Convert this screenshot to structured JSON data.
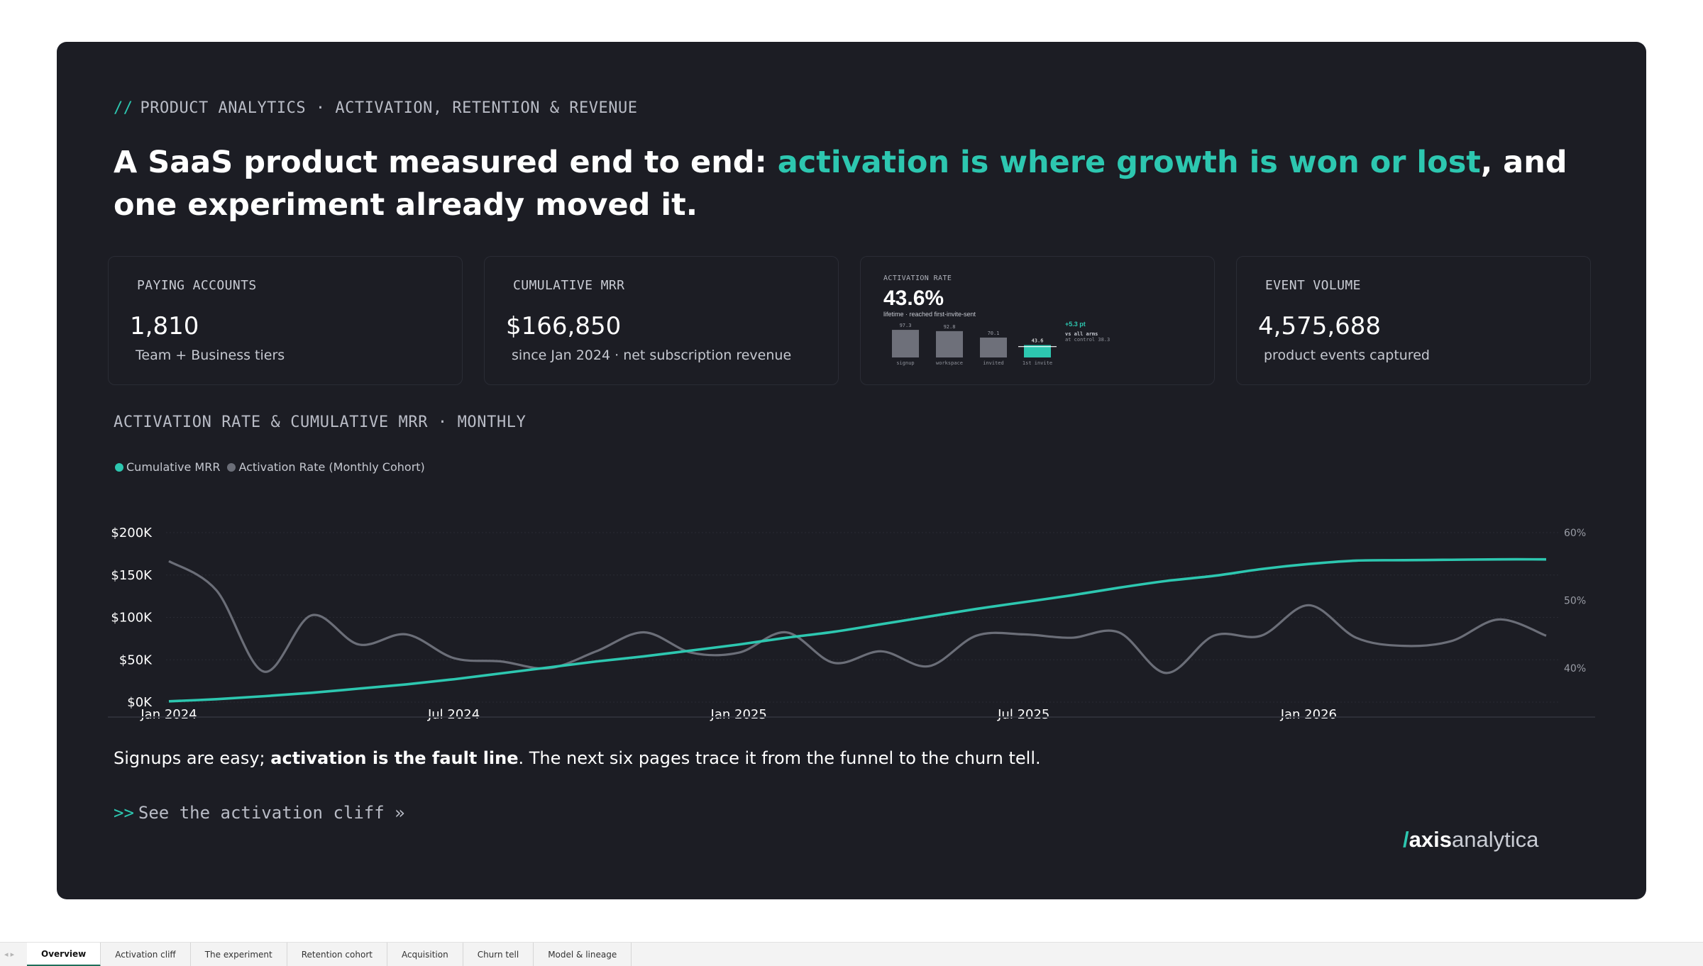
{
  "eyebrow": {
    "prefix": "//",
    "text": "PRODUCT ANALYTICS · ACTIVATION, RETENTION & REVENUE"
  },
  "headline": {
    "part1": "A SaaS product measured end to end: ",
    "accent": "activation is where growth is won or lost",
    "part2": ", and one experiment already moved it."
  },
  "kpis": [
    {
      "label": "PAYING ACCOUNTS",
      "value": "1,810",
      "sub": "Team + Business tiers"
    },
    {
      "label": "CUMULATIVE MRR",
      "value": "$166,850",
      "sub": "since Jan 2024 · net subscription revenue"
    },
    {
      "label": "ACTIVATION RATE",
      "value": "43.6%",
      "sub": "lifetime · reached first-invite-sent"
    },
    {
      "label": "EVENT VOLUME",
      "value": "4,575,688",
      "sub": "product events captured"
    }
  ],
  "mini_funnel": {
    "steps": [
      "signup",
      "workspace",
      "invited",
      "1st invite"
    ],
    "values": [
      "97.3",
      "92.8",
      "70.1",
      "43.6"
    ],
    "levels": [
      97.3,
      92.8,
      70.1,
      43.6
    ],
    "delta": "+5.3 pt",
    "delta_note1": "vs all arms",
    "delta_note2": "at control 38.3"
  },
  "section_title": "ACTIVATION RATE & CUMULATIVE MRR · MONTHLY",
  "legend": [
    {
      "name": "Cumulative MRR",
      "color": "#2dc7b0"
    },
    {
      "name": "Activation Rate (Monthly Cohort)",
      "color": "#6b6e78"
    }
  ],
  "chart_data": {
    "type": "line",
    "x": [
      "2024-01",
      "2024-02",
      "2024-03",
      "2024-04",
      "2024-05",
      "2024-06",
      "2024-07",
      "2024-08",
      "2024-09",
      "2024-10",
      "2024-11",
      "2024-12",
      "2025-01",
      "2025-02",
      "2025-03",
      "2025-04",
      "2025-05",
      "2025-06",
      "2025-07",
      "2025-08",
      "2025-09",
      "2025-10",
      "2025-11",
      "2025-12",
      "2026-01",
      "2026-02",
      "2026-03",
      "2026-04",
      "2026-05",
      "2026-06"
    ],
    "x_ticks": [
      "Jan 2024",
      "Jul 2024",
      "Jan 2025",
      "Jul 2025",
      "Jan 2026"
    ],
    "y_left": {
      "ticks": [
        "$0K",
        "$50K",
        "$100K",
        "$150K",
        "$200K"
      ],
      "range": [
        0,
        200000
      ]
    },
    "y_right": {
      "ticks": [
        "40%",
        "50%",
        "60%"
      ],
      "range": [
        35,
        60
      ]
    },
    "series": [
      {
        "name": "Cumulative MRR",
        "axis": "left",
        "color": "#2dc7b0",
        "values": [
          1000,
          3500,
          7000,
          11000,
          16000,
          21000,
          27000,
          34000,
          41000,
          48000,
          54000,
          61000,
          68000,
          76000,
          83000,
          92000,
          101000,
          110000,
          118000,
          126000,
          135000,
          143000,
          149000,
          157000,
          163000,
          167000,
          167500,
          168000,
          168500,
          168500
        ]
      },
      {
        "name": "Activation Rate (Monthly Cohort)",
        "axis": "right",
        "color": "#6b6e78",
        "values": [
          55.8,
          51.5,
          39.5,
          47.8,
          43.5,
          45.0,
          41.5,
          41.0,
          40.0,
          42.5,
          45.3,
          42.3,
          42.3,
          45.3,
          40.8,
          42.5,
          40.3,
          44.8,
          45.0,
          44.5,
          45.3,
          39.3,
          44.8,
          44.8,
          49.3,
          44.5,
          43.3,
          44.0,
          47.2,
          44.8
        ]
      }
    ],
    "grid": true
  },
  "caption": {
    "part1": "Signups are easy; ",
    "bold": "activation is the fault line",
    "part2": ". The next six pages trace it from the funnel to the churn tell."
  },
  "cta": {
    "arrows": ">>",
    "text": "See the activation cliff »"
  },
  "logo": {
    "slash": "/",
    "strong": "axis",
    "light": "analytica"
  },
  "tabs": [
    "Overview",
    "Activation cliff",
    "The experiment",
    "Retention cohort",
    "Acquisition",
    "Churn tell",
    "Model & lineage"
  ],
  "tab_nav": "◂ ▸"
}
